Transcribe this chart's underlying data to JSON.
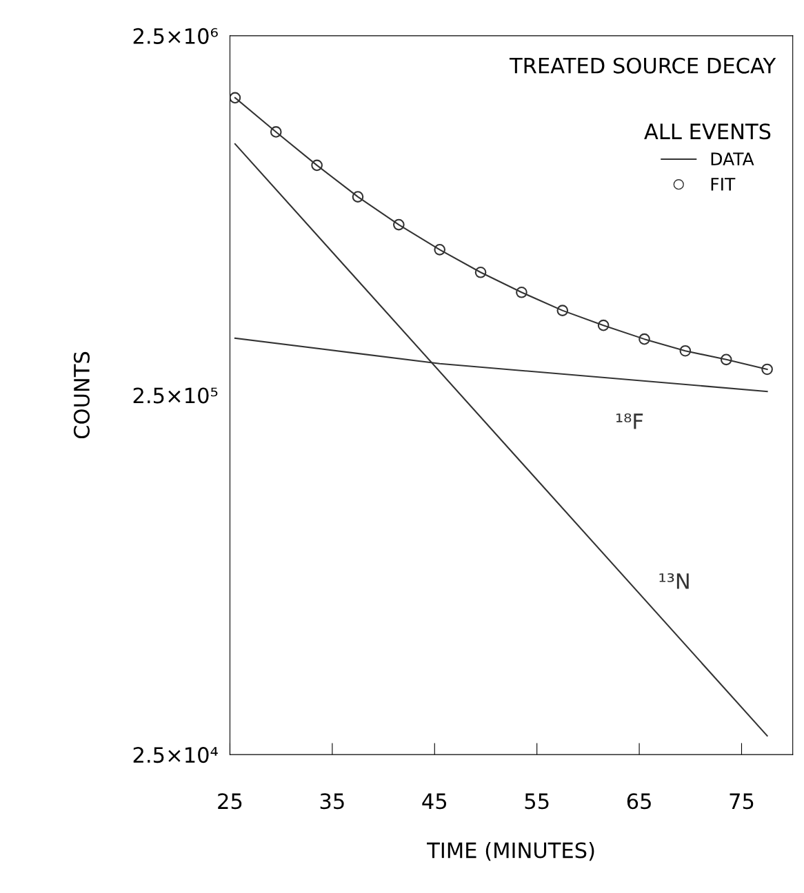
{
  "chart_data": {
    "type": "line",
    "title": "TREATED SOURCE DECAY",
    "xlabel": "TIME (MINUTES)",
    "ylabel": "COUNTS",
    "log": "y",
    "xlim": [
      25,
      80
    ],
    "xticks": [
      25,
      35,
      45,
      55,
      65,
      75
    ],
    "ylim": [
      25000,
      2500000
    ],
    "yticks": [
      {
        "value": 25000,
        "label": "2.5×10⁴"
      },
      {
        "value": 250000,
        "label": "2.5×10⁵"
      },
      {
        "value": 2500000,
        "label": "2.5×10⁶"
      }
    ],
    "legend": "top right",
    "legend_title": "ALL EVENTS",
    "grid": false,
    "series": [
      {
        "name": "DATA",
        "color": "#333333",
        "x": [
          25.5,
          29.5,
          33.5,
          37.5,
          41.5,
          45.5,
          49.5,
          53.5,
          57.5,
          61.5,
          65.5,
          69.5,
          73.5,
          77.5
        ],
        "values": [
          1680000,
          1350000,
          1090000,
          891000,
          745000,
          635000,
          549000,
          483000,
          430000,
          391000,
          358000,
          332000,
          314000,
          295000
        ]
      },
      {
        "name": "FIT",
        "type": "scatter",
        "marker": "circle",
        "color": "#333333",
        "x": [
          25.5,
          29.5,
          33.5,
          37.5,
          41.5,
          45.5,
          49.5,
          53.5,
          57.5,
          61.5,
          65.5,
          69.5,
          73.5,
          77.5
        ],
        "values": [
          1680000,
          1350000,
          1090000,
          891000,
          745000,
          635000,
          549000,
          483000,
          430000,
          391000,
          358000,
          332000,
          314000,
          295000
        ]
      },
      {
        "name": "¹⁸F",
        "color": "#333333",
        "x": [
          25.5,
          45.5,
          77.5
        ],
        "values": [
          360000,
          306000,
          256000
        ]
      },
      {
        "name": "¹³N",
        "color": "#333333",
        "x": [
          25.5,
          77.5
        ],
        "values": [
          1250000,
          28200
        ]
      }
    ]
  }
}
